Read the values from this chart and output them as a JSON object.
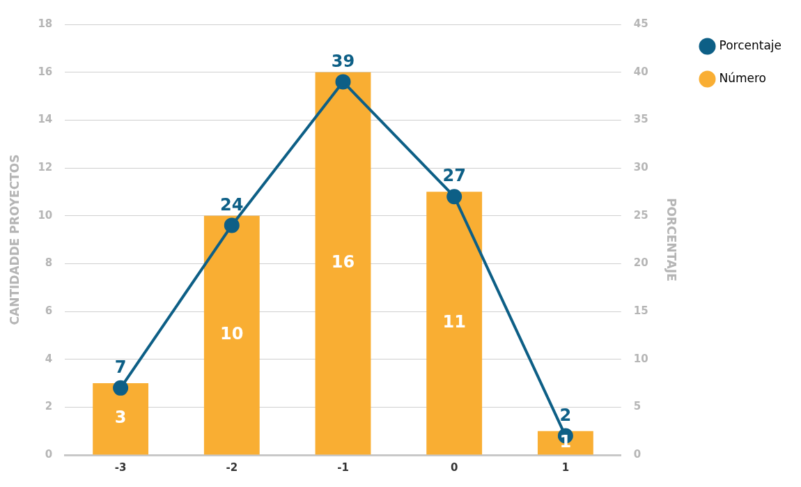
{
  "chart_data": {
    "type": "bar",
    "categories": [
      "-3",
      "-2",
      "-1",
      "0",
      "1"
    ],
    "series": [
      {
        "name": "Porcentaje",
        "type": "line",
        "axis": "y2",
        "color": "#0d5f86",
        "values": [
          7,
          24,
          39,
          27,
          2
        ]
      },
      {
        "name": "Número",
        "color": "#f9ae33",
        "values": [
          3,
          10,
          16,
          11,
          1
        ]
      }
    ],
    "ylabel": "CANTIDADDE PROYECTOS",
    "y2label": "PORCENTAJE",
    "ylim": [
      0,
      18
    ],
    "yticks": [
      0,
      2,
      4,
      6,
      8,
      10,
      12,
      14,
      16,
      18
    ],
    "y2lim": [
      0,
      45
    ],
    "y2ticks": [
      0,
      5,
      10,
      15,
      20,
      25,
      30,
      35,
      40,
      45
    ],
    "grid": "y",
    "legend": "top right",
    "marker": "circle",
    "line_style": "solid",
    "data_labels": true
  }
}
